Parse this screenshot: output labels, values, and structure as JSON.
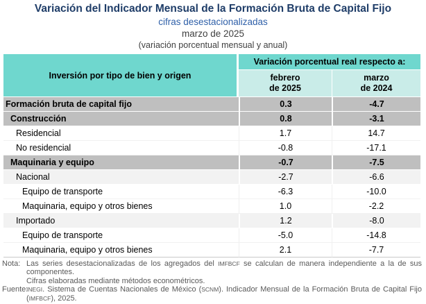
{
  "header": {
    "title": "Variación del Indicador Mensual de la Formación Bruta de Capital Fijo",
    "subtitle": "cifras desestacionalizadas",
    "period": "marzo de 2025",
    "measure_note": "(variación porcentual mensual y anual)"
  },
  "table": {
    "row_header": "Inversión por tipo de bien y origen",
    "col_group_header": "Variación porcentual real respecto a:",
    "columns": [
      {
        "line1": "febrero",
        "line2": "de 2025"
      },
      {
        "line1": "marzo",
        "line2": "de 2024"
      }
    ],
    "rows": [
      {
        "label": "Formación bruta de capital fijo",
        "feb_2025": "0.3",
        "mar_2024": "-4.7",
        "style": "total",
        "indent": 0
      },
      {
        "label": "Construcción",
        "feb_2025": "0.8",
        "mar_2024": "-3.1",
        "style": "section",
        "indent": 1
      },
      {
        "label": "Residencial",
        "feb_2025": "1.7",
        "mar_2024": "14.7",
        "style": "plain",
        "indent": 2
      },
      {
        "label": "No residencial",
        "feb_2025": "-0.8",
        "mar_2024": "-17.1",
        "style": "plain",
        "indent": 2
      },
      {
        "label": "Maquinaria y equipo",
        "feb_2025": "-0.7",
        "mar_2024": "-7.5",
        "style": "section",
        "indent": 1
      },
      {
        "label": "Nacional",
        "feb_2025": "-2.7",
        "mar_2024": "-6.6",
        "style": "shaded",
        "indent": 2
      },
      {
        "label": "Equipo de transporte",
        "feb_2025": "-6.3",
        "mar_2024": "-10.0",
        "style": "plain",
        "indent": 3
      },
      {
        "label": "Maquinaria, equipo y otros bienes",
        "feb_2025": "1.0",
        "mar_2024": "-2.2",
        "style": "plain",
        "indent": 3
      },
      {
        "label": "Importado",
        "feb_2025": "1.2",
        "mar_2024": "-8.0",
        "style": "shaded",
        "indent": 2
      },
      {
        "label": "Equipo de transporte",
        "feb_2025": "-5.0",
        "mar_2024": "-14.8",
        "style": "plain",
        "indent": 3
      },
      {
        "label": "Maquinaria, equipo y otros bienes",
        "feb_2025": "2.1",
        "mar_2024": "-7.7",
        "style": "plain",
        "indent": 3
      }
    ]
  },
  "footnotes": {
    "nota_label": "Nota:",
    "nota_1a": "Las series desestacionalizadas de los agregados del ",
    "nota_1b": "IMFBCF",
    "nota_1c": " se calculan de manera independiente a la de sus componentes.",
    "nota_2": "Cifras elaboradas mediante métodos econométricos.",
    "fuente_label": "Fuente:",
    "fuente_1a": "INEGI",
    "fuente_1b": ". Sistema de Cuentas Nacionales de México (",
    "fuente_1c": "SCNM",
    "fuente_1d": "). Indicador Mensual de la Formación Bruta de Capital Fijo (",
    "fuente_1e": "IMFBCF",
    "fuente_1f": "), 2025."
  },
  "colors": {
    "title_navy": "#1F3D68",
    "subtitle_blue": "#2E5FA8",
    "header_teal": "#6FD7CE",
    "subheader_teal": "#C9ECE8",
    "row_gray": "#BFBFBF",
    "row_light_gray": "#F2F2F2",
    "note_gray": "#595959"
  }
}
